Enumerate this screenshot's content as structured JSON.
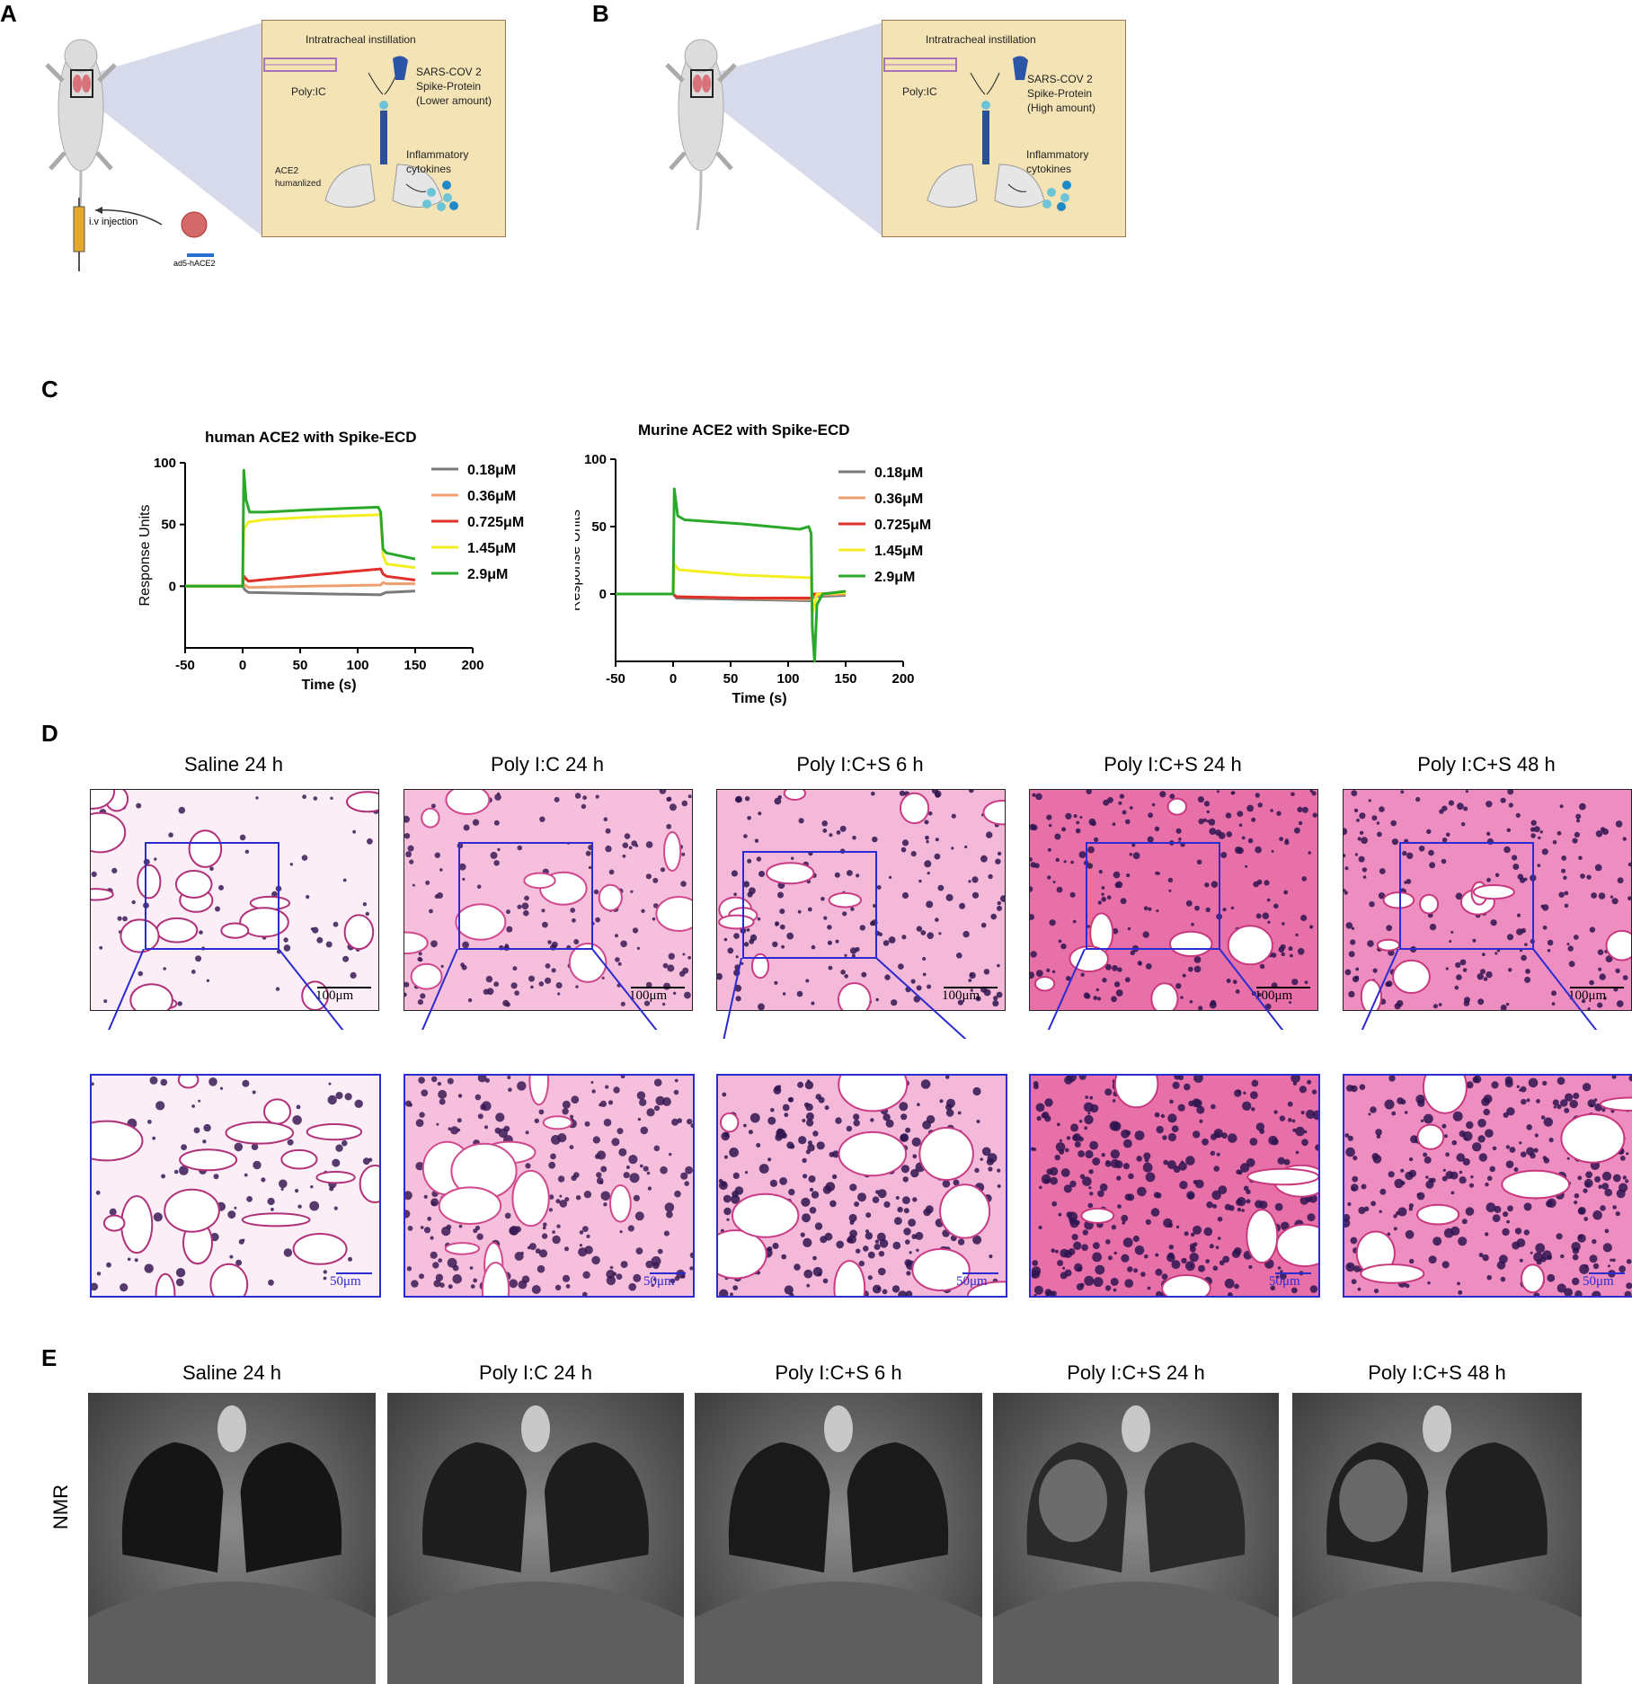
{
  "panels": {
    "A": "A",
    "B": "B",
    "C": "C",
    "D": "D",
    "E": "E"
  },
  "schematic_a": {
    "title": "Intratracheal instillation",
    "polyic": "Poly:IC",
    "spike_l1": "SARS-COV 2",
    "spike_l2": "Spike-Protein",
    "spike_l3": "(Lower amount)",
    "ace2_l1": "ACE2",
    "ace2_l2": "humanlized",
    "cyto_l1": "Inflammatory",
    "cyto_l2": "cytokines",
    "injection": "i.v injection",
    "vector": "ad5-hACE2"
  },
  "schematic_b": {
    "title": "Intratracheal instillation",
    "polyic": "Poly:IC",
    "spike_l1": "SARS-COV 2",
    "spike_l2": "Spike-Protein",
    "spike_l3": "(High amount)",
    "cyto_l1": "Inflammatory",
    "cyto_l2": "cytokines"
  },
  "chart_data": [
    {
      "type": "line",
      "title": "human ACE2 with Spike-ECD",
      "xlabel": "Time (s)",
      "ylabel": "Response Units",
      "xlim": [
        -50,
        200
      ],
      "ylim": [
        -50,
        100
      ],
      "xticks": [
        -50,
        0,
        50,
        100,
        150,
        200
      ],
      "yticks": [
        0,
        50,
        100
      ],
      "legend_position": "right",
      "series": [
        {
          "name": "0.18μM",
          "color": "#7a7a7a",
          "x": [
            -50,
            0,
            2,
            5,
            60,
            120,
            122,
            125,
            150
          ],
          "y": [
            0,
            0,
            -3,
            -5,
            -6,
            -7,
            -6,
            -5,
            -4
          ]
        },
        {
          "name": "0.36μM",
          "color": "#f0a070",
          "x": [
            -50,
            0,
            2,
            5,
            60,
            120,
            122,
            125,
            150
          ],
          "y": [
            0,
            0,
            1,
            -1,
            0,
            1,
            3,
            2,
            2
          ]
        },
        {
          "name": "0.725μM",
          "color": "#e0302a",
          "x": [
            -50,
            0,
            1,
            3,
            5,
            60,
            120,
            122,
            125,
            150
          ],
          "y": [
            0,
            0,
            8,
            6,
            4,
            9,
            14,
            10,
            8,
            5
          ]
        },
        {
          "name": "1.45μM",
          "color": "#f2ee20",
          "x": [
            -50,
            0,
            1,
            5,
            20,
            60,
            120,
            122,
            125,
            150
          ],
          "y": [
            0,
            0,
            46,
            52,
            54,
            56,
            58,
            25,
            18,
            15
          ]
        },
        {
          "name": "2.9μM",
          "color": "#2aa82a",
          "x": [
            -50,
            0,
            1,
            3,
            6,
            20,
            60,
            118,
            120,
            122,
            125,
            150
          ],
          "y": [
            0,
            0,
            94,
            70,
            60,
            60,
            62,
            64,
            60,
            30,
            27,
            22
          ]
        }
      ]
    },
    {
      "type": "line",
      "title": "Murine ACE2 with Spike-ECD",
      "xlabel": "Time (s)",
      "ylabel": "Response Units",
      "xlim": [
        -50,
        200
      ],
      "ylim": [
        -50,
        100
      ],
      "xticks": [
        -50,
        0,
        50,
        100,
        150,
        200
      ],
      "yticks": [
        0,
        50,
        100
      ],
      "legend_position": "right",
      "series": [
        {
          "name": "0.18μM",
          "color": "#7a7a7a",
          "x": [
            -50,
            0,
            3,
            60,
            120,
            122,
            150
          ],
          "y": [
            0,
            0,
            -3,
            -4,
            -5,
            -2,
            -1
          ]
        },
        {
          "name": "0.36μM",
          "color": "#f0a070",
          "x": [
            -50,
            0,
            3,
            60,
            120,
            122,
            150
          ],
          "y": [
            0,
            0,
            -2,
            -3,
            -4,
            -1,
            0
          ]
        },
        {
          "name": "0.725μM",
          "color": "#e0302a",
          "x": [
            -50,
            0,
            3,
            60,
            120,
            122,
            150
          ],
          "y": [
            0,
            0,
            -2,
            -3,
            -3,
            0,
            1
          ]
        },
        {
          "name": "1.45μM",
          "color": "#f2ee20",
          "x": [
            -50,
            0,
            1,
            5,
            60,
            120,
            121,
            125,
            150
          ],
          "y": [
            0,
            0,
            22,
            18,
            14,
            12,
            -15,
            0,
            1
          ]
        },
        {
          "name": "2.9μM",
          "color": "#2aa82a",
          "x": [
            -50,
            0,
            1,
            4,
            10,
            60,
            110,
            118,
            120,
            121,
            123,
            125,
            130,
            150
          ],
          "y": [
            0,
            0,
            78,
            58,
            55,
            52,
            48,
            50,
            45,
            -25,
            -50,
            -8,
            0,
            2
          ]
        }
      ]
    }
  ],
  "histology": {
    "titles": [
      "Saline 24 h",
      "Poly I:C 24 h",
      "Poly I:C+S 6 h",
      "Poly I:C+S 24 h",
      "Poly I:C+S 48 h"
    ],
    "scale_top": "100μm",
    "scale_bottom": "50μm"
  },
  "nmr": {
    "titles": [
      "Saline 24 h",
      "Poly I:C 24 h",
      "Poly I:C+S 6 h",
      "Poly I:C+S 24 h",
      "Poly I:C+S 48 h"
    ],
    "ylabel": "NMR"
  }
}
